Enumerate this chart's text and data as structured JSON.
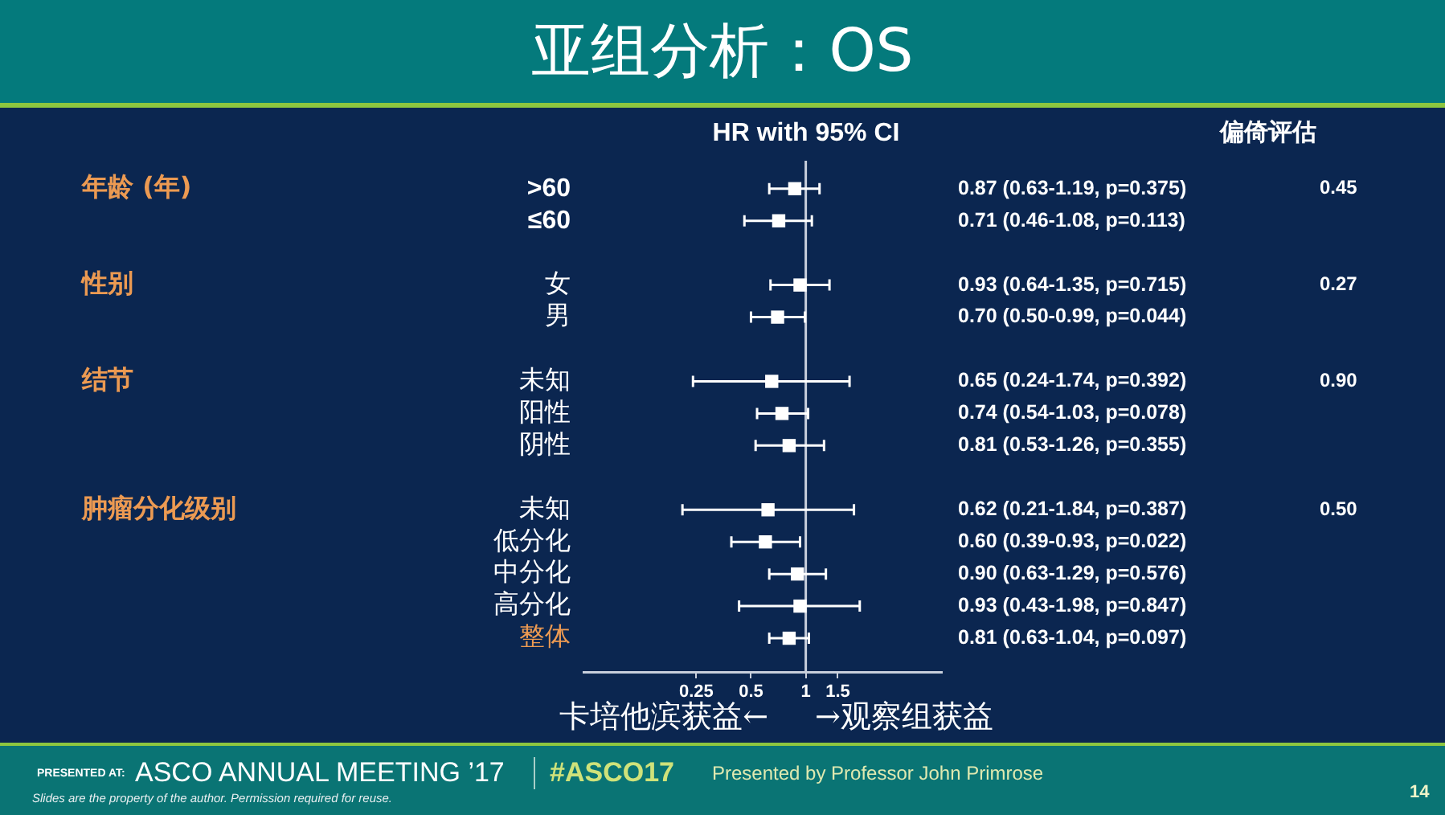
{
  "chart_data": {
    "type": "scatter",
    "title": "亚组分析：OS",
    "xlabel": "HR with 95% CI",
    "orientation": "horizontal",
    "categories": [
      ">60",
      "≤60",
      null,
      "女",
      "男",
      null,
      "未知",
      "阳性",
      "阴性",
      null,
      "未知",
      "低分化",
      "中分化",
      "高分化",
      "整体"
    ],
    "color": "#ffffff",
    "values": [
      0.87,
      0.71,
      null,
      0.93,
      0.7,
      null,
      0.65,
      0.74,
      0.81,
      null,
      0.62,
      0.6,
      0.9,
      0.93,
      0.81
    ],
    "errors": [
      [
        0.63,
        1.19
      ],
      [
        0.46,
        1.08
      ],
      null,
      [
        0.64,
        1.35
      ],
      [
        0.5,
        0.99
      ],
      null,
      [
        0.24,
        1.74
      ],
      [
        0.54,
        1.03
      ],
      [
        0.53,
        1.26
      ],
      null,
      [
        0.21,
        1.84
      ],
      [
        0.39,
        0.93
      ],
      [
        0.63,
        1.29
      ],
      [
        0.43,
        1.98
      ],
      [
        0.63,
        1.04
      ]
    ],
    "value_labels": [
      "0.87 (0.63-1.19, p=0.375)",
      "0.71 (0.46-1.08, p=0.113)",
      null,
      "0.93 (0.64-1.35, p=0.715)",
      "0.70 (0.50-0.99, p=0.044)",
      null,
      "0.65 (0.24-1.74, p=0.392)",
      "0.74 (0.54-1.03, p=0.078)",
      "0.81 (0.53-1.26, p=0.355)",
      null,
      "0.62 (0.21-1.84, p=0.387)",
      "0.60 (0.39-0.93, p=0.022)",
      "0.90 (0.63-1.29, p=0.576)",
      "0.93 (0.43-1.98, p=0.847)",
      "0.81 (0.63-1.04, p=0.097)"
    ],
    "log": "x",
    "xlim": [
      0.06,
      5.6
    ],
    "xticks": [
      0.25,
      0.5,
      1,
      1.5
    ],
    "ref_lines": [
      {
        "axis": "x",
        "value": 1,
        "color": "#c8cfdc"
      }
    ],
    "marker": "square",
    "annotations": [
      "年龄 (年)",
      "性别",
      "结节",
      "肿瘤分化级别",
      "偏倚评估",
      "0.45",
      "0.27",
      "0.90",
      "0.50",
      "卡培他滨获益←",
      "→观察组获益",
      "PRESENTED AT:",
      "ASCO ANNUAL MEETING ’17",
      "#ASCO17",
      "Presented by Professor John Primrose",
      "Slides are the property of the author. Permission required for reuse.",
      "14"
    ]
  }
}
